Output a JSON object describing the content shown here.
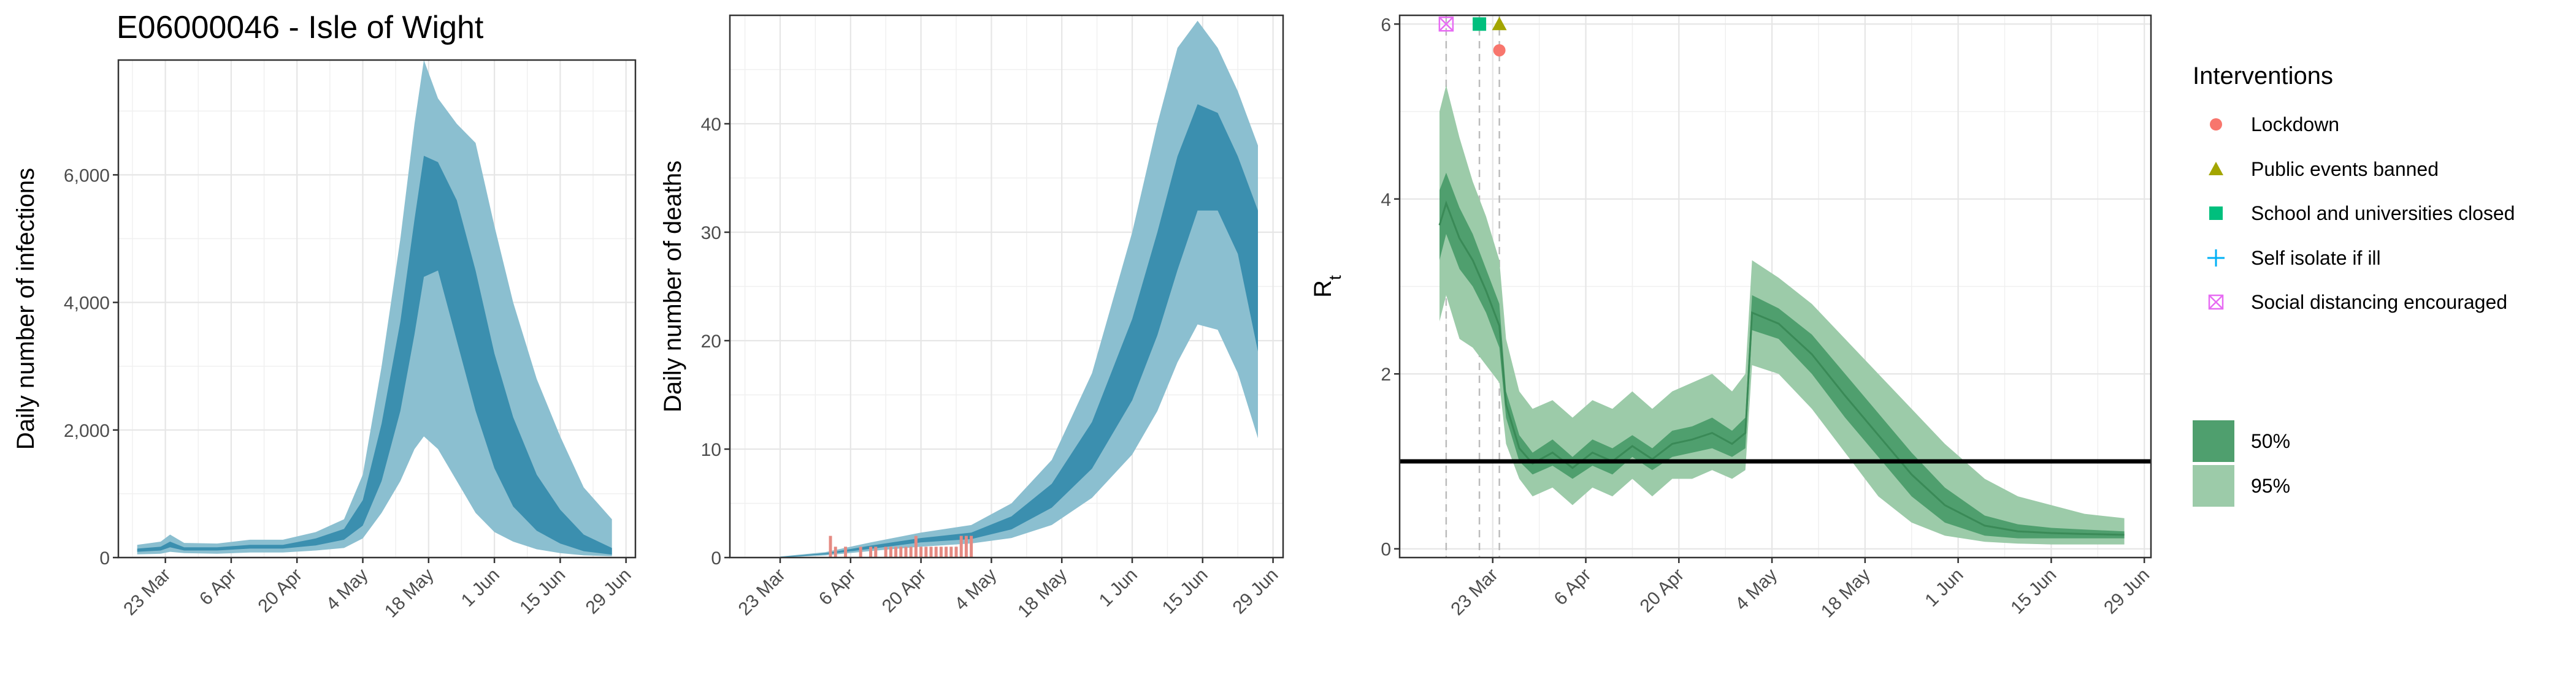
{
  "title": "E06000046 - Isle of Wight",
  "colors": {
    "infection_95": "#8bbfd0",
    "infection_50": "#3b8faf",
    "rt_95": "#9ccba9",
    "rt_50": "#4f9f6e",
    "rt_line": "#3a8a57",
    "deaths_bar": "#e58a82",
    "lockdown": "#f8766d",
    "public_events": "#a3a500",
    "schools": "#00bf7d",
    "self_isolate": "#00b0f6",
    "social_distancing": "#e76bf3"
  },
  "chart_data": [
    {
      "type": "area",
      "panel": "infections",
      "ylabel": "Daily number of infections",
      "xlabel": "",
      "ylim": [
        0,
        7800
      ],
      "yticks": [
        0,
        2000,
        4000,
        6000
      ],
      "ytick_labels": [
        "0",
        "2,000",
        "4,000",
        "6,000"
      ],
      "xlim": [
        "2020-03-13",
        "2020-07-01"
      ],
      "xticks": [
        "2020-03-23",
        "2020-04-06",
        "2020-04-20",
        "2020-05-04",
        "2020-05-18",
        "2020-06-01",
        "2020-06-15",
        "2020-06-29"
      ],
      "xtick_labels": [
        "23 Mar",
        "6 Apr",
        "20 Apr",
        "4 May",
        "18 May",
        "1 Jun",
        "15 Jun",
        "29 Jun"
      ],
      "series": [
        {
          "name": "95%",
          "x": [
            "2020-03-17",
            "2020-03-22",
            "2020-03-24",
            "2020-03-27",
            "2020-04-03",
            "2020-04-10",
            "2020-04-17",
            "2020-04-24",
            "2020-04-30",
            "2020-05-04",
            "2020-05-08",
            "2020-05-12",
            "2020-05-15",
            "2020-05-17",
            "2020-05-20",
            "2020-05-24",
            "2020-05-28",
            "2020-06-01",
            "2020-06-05",
            "2020-06-10",
            "2020-06-15",
            "2020-06-20",
            "2020-06-26"
          ],
          "upper": [
            200,
            250,
            360,
            230,
            220,
            280,
            280,
            400,
            600,
            1300,
            3000,
            5000,
            6800,
            7800,
            7200,
            6800,
            6500,
            5200,
            4000,
            2800,
            1900,
            1100,
            600
          ],
          "lower": [
            50,
            60,
            90,
            70,
            60,
            80,
            80,
            110,
            150,
            300,
            700,
            1200,
            1700,
            1900,
            1700,
            1200,
            700,
            400,
            250,
            130,
            70,
            35,
            20
          ]
        },
        {
          "name": "50%",
          "x": [
            "2020-03-17",
            "2020-03-22",
            "2020-03-24",
            "2020-03-27",
            "2020-04-03",
            "2020-04-10",
            "2020-04-17",
            "2020-04-24",
            "2020-04-30",
            "2020-05-04",
            "2020-05-08",
            "2020-05-12",
            "2020-05-15",
            "2020-05-17",
            "2020-05-20",
            "2020-05-24",
            "2020-05-28",
            "2020-06-01",
            "2020-06-05",
            "2020-06-10",
            "2020-06-15",
            "2020-06-20",
            "2020-06-26"
          ],
          "upper": [
            140,
            170,
            250,
            160,
            160,
            200,
            200,
            300,
            450,
            900,
            2100,
            3700,
            5300,
            6300,
            6200,
            5600,
            4500,
            3200,
            2200,
            1300,
            750,
            360,
            150
          ],
          "lower": [
            90,
            110,
            160,
            110,
            110,
            140,
            140,
            190,
            280,
            500,
            1200,
            2300,
            3500,
            4400,
            4500,
            3400,
            2300,
            1400,
            800,
            420,
            220,
            100,
            45
          ]
        }
      ]
    },
    {
      "type": "area",
      "panel": "deaths",
      "ylabel": "Daily number of deaths",
      "xlabel": "",
      "ylim": [
        0,
        50
      ],
      "yticks": [
        0,
        10,
        20,
        30,
        40
      ],
      "ytick_labels": [
        "0",
        "10",
        "20",
        "30",
        "40"
      ],
      "xlim": [
        "2020-03-13",
        "2020-07-01"
      ],
      "xticks": [
        "2020-03-23",
        "2020-04-06",
        "2020-04-20",
        "2020-05-04",
        "2020-05-18",
        "2020-06-01",
        "2020-06-15",
        "2020-06-29"
      ],
      "xtick_labels": [
        "23 Mar",
        "6 Apr",
        "20 Apr",
        "4 May",
        "18 May",
        "1 Jun",
        "15 Jun",
        "29 Jun"
      ],
      "series": [
        {
          "name": "95%",
          "x": [
            "2020-03-23",
            "2020-04-01",
            "2020-04-10",
            "2020-04-20",
            "2020-04-30",
            "2020-05-08",
            "2020-05-16",
            "2020-05-24",
            "2020-06-01",
            "2020-06-06",
            "2020-06-10",
            "2020-06-14",
            "2020-06-18",
            "2020-06-22",
            "2020-06-26"
          ],
          "upper": [
            0.1,
            0.5,
            1.4,
            2.3,
            3,
            5,
            9,
            17,
            30,
            40,
            47,
            49.5,
            47,
            43,
            38
          ],
          "lower": [
            0,
            0.2,
            0.6,
            1,
            1.3,
            1.8,
            3,
            5.5,
            9.5,
            13.5,
            18,
            21.5,
            21,
            17,
            11
          ]
        },
        {
          "name": "50%",
          "x": [
            "2020-03-23",
            "2020-04-01",
            "2020-04-10",
            "2020-04-20",
            "2020-04-30",
            "2020-05-08",
            "2020-05-16",
            "2020-05-24",
            "2020-06-01",
            "2020-06-06",
            "2020-06-10",
            "2020-06-14",
            "2020-06-18",
            "2020-06-22",
            "2020-06-26"
          ],
          "upper": [
            0.05,
            0.4,
            1.1,
            1.8,
            2.3,
            3.8,
            6.8,
            12.5,
            22,
            30,
            37,
            41.8,
            41,
            37,
            32
          ],
          "lower": [
            0,
            0.3,
            0.8,
            1.4,
            1.7,
            2.6,
            4.6,
            8.2,
            14.5,
            20.5,
            26.5,
            32,
            32,
            28,
            19
          ]
        },
        {
          "name": "Observed deaths",
          "type": "bar",
          "x": [
            "2020-04-02",
            "2020-04-03",
            "2020-04-05",
            "2020-04-08",
            "2020-04-10",
            "2020-04-11",
            "2020-04-13",
            "2020-04-14",
            "2020-04-15",
            "2020-04-16",
            "2020-04-17",
            "2020-04-18",
            "2020-04-19",
            "2020-04-20",
            "2020-04-21",
            "2020-04-22",
            "2020-04-23",
            "2020-04-24",
            "2020-04-25",
            "2020-04-26",
            "2020-04-27",
            "2020-04-28",
            "2020-04-29",
            "2020-04-30"
          ],
          "values": [
            2,
            1,
            1,
            1,
            1,
            1,
            1,
            1,
            1,
            1,
            1,
            1,
            2,
            1,
            1,
            1,
            1,
            1,
            1,
            1,
            1,
            2,
            2,
            2
          ]
        }
      ]
    },
    {
      "type": "area",
      "panel": "rt",
      "ylabel": "R",
      "ylabel_subscript": "t",
      "xlabel": "",
      "ylim": [
        -0.1,
        6.1
      ],
      "yticks": [
        0,
        2,
        4,
        6
      ],
      "ytick_labels": [
        "0",
        "2",
        "4",
        "6"
      ],
      "hline": 1,
      "xlim": [
        "2020-03-09",
        "2020-06-30"
      ],
      "xticks": [
        "2020-03-23",
        "2020-04-06",
        "2020-04-20",
        "2020-05-04",
        "2020-05-18",
        "2020-06-01",
        "2020-06-15",
        "2020-06-29"
      ],
      "xtick_labels": [
        "23 Mar",
        "6 Apr",
        "20 Apr",
        "4 May",
        "18 May",
        "1 Jun",
        "15 Jun",
        "29 Jun"
      ],
      "intervention_dates": [
        "2020-03-16",
        "2020-03-21",
        "2020-03-24"
      ],
      "markers": [
        {
          "name": "Social distancing encouraged",
          "date": "2020-03-16",
          "y": 6.0,
          "shape": "boxx"
        },
        {
          "name": "School and universities closed",
          "date": "2020-03-21",
          "y": 6.0,
          "shape": "square"
        },
        {
          "name": "Public events banned",
          "date": "2020-03-24",
          "y": 6.0,
          "shape": "triangle"
        },
        {
          "name": "Lockdown",
          "date": "2020-03-24",
          "y": 5.7,
          "shape": "circle"
        }
      ],
      "series": [
        {
          "name": "95%",
          "x": [
            "2020-03-15",
            "2020-03-16",
            "2020-03-18",
            "2020-03-20",
            "2020-03-22",
            "2020-03-24",
            "2020-03-25",
            "2020-03-27",
            "2020-03-29",
            "2020-04-01",
            "2020-04-04",
            "2020-04-07",
            "2020-04-10",
            "2020-04-13",
            "2020-04-16",
            "2020-04-19",
            "2020-04-22",
            "2020-04-25",
            "2020-04-28",
            "2020-04-30",
            "2020-05-01",
            "2020-05-05",
            "2020-05-10",
            "2020-05-15",
            "2020-05-20",
            "2020-05-25",
            "2020-05-30",
            "2020-06-05",
            "2020-06-10",
            "2020-06-15",
            "2020-06-20",
            "2020-06-26"
          ],
          "upper": [
            5.0,
            5.3,
            4.7,
            4.2,
            3.8,
            3.3,
            2.4,
            1.8,
            1.6,
            1.7,
            1.5,
            1.7,
            1.6,
            1.8,
            1.6,
            1.8,
            1.9,
            2.0,
            1.8,
            2.0,
            3.3,
            3.1,
            2.8,
            2.4,
            2.0,
            1.6,
            1.2,
            0.8,
            0.6,
            0.5,
            0.4,
            0.35
          ],
          "lower": [
            2.6,
            2.9,
            2.4,
            2.3,
            2.1,
            1.9,
            1.2,
            0.8,
            0.6,
            0.7,
            0.5,
            0.7,
            0.6,
            0.8,
            0.6,
            0.8,
            0.8,
            0.9,
            0.8,
            0.9,
            2.1,
            2.0,
            1.6,
            1.1,
            0.6,
            0.3,
            0.15,
            0.08,
            0.06,
            0.05,
            0.05,
            0.05
          ]
        },
        {
          "name": "50%",
          "x": [
            "2020-03-15",
            "2020-03-16",
            "2020-03-18",
            "2020-03-20",
            "2020-03-22",
            "2020-03-24",
            "2020-03-25",
            "2020-03-27",
            "2020-03-29",
            "2020-04-01",
            "2020-04-04",
            "2020-04-07",
            "2020-04-10",
            "2020-04-13",
            "2020-04-16",
            "2020-04-19",
            "2020-04-22",
            "2020-04-25",
            "2020-04-28",
            "2020-04-30",
            "2020-05-01",
            "2020-05-05",
            "2020-05-10",
            "2020-05-15",
            "2020-05-20",
            "2020-05-25",
            "2020-05-30",
            "2020-06-05",
            "2020-06-10",
            "2020-06-15",
            "2020-06-20",
            "2020-06-26"
          ],
          "upper": [
            4.1,
            4.3,
            3.9,
            3.6,
            3.2,
            2.8,
            1.8,
            1.3,
            1.1,
            1.25,
            1.05,
            1.25,
            1.15,
            1.3,
            1.15,
            1.35,
            1.4,
            1.5,
            1.35,
            1.5,
            2.9,
            2.75,
            2.45,
            2.0,
            1.55,
            1.1,
            0.7,
            0.38,
            0.28,
            0.24,
            0.22,
            0.2
          ],
          "lower": [
            3.3,
            3.6,
            3.2,
            3.0,
            2.7,
            2.3,
            1.5,
            1.0,
            0.85,
            0.95,
            0.8,
            0.95,
            0.85,
            1.05,
            0.9,
            1.05,
            1.1,
            1.15,
            1.05,
            1.15,
            2.5,
            2.4,
            2.0,
            1.5,
            1.05,
            0.6,
            0.3,
            0.15,
            0.12,
            0.12,
            0.12,
            0.12
          ]
        }
      ]
    }
  ],
  "legend": {
    "interventions_title": "Interventions",
    "interventions": [
      {
        "label": "Lockdown",
        "shape": "circle",
        "color_key": "lockdown"
      },
      {
        "label": "Public events banned",
        "shape": "triangle",
        "color_key": "public_events"
      },
      {
        "label": "School and universities closed",
        "shape": "square",
        "color_key": "schools"
      },
      {
        "label": "Self isolate if ill",
        "shape": "plus",
        "color_key": "self_isolate"
      },
      {
        "label": "Social distancing encouraged",
        "shape": "boxx",
        "color_key": "social_distancing"
      }
    ],
    "ci_items": [
      {
        "label": "50%",
        "color_key": "rt_50"
      },
      {
        "label": "95%",
        "color_key": "rt_95"
      }
    ]
  }
}
